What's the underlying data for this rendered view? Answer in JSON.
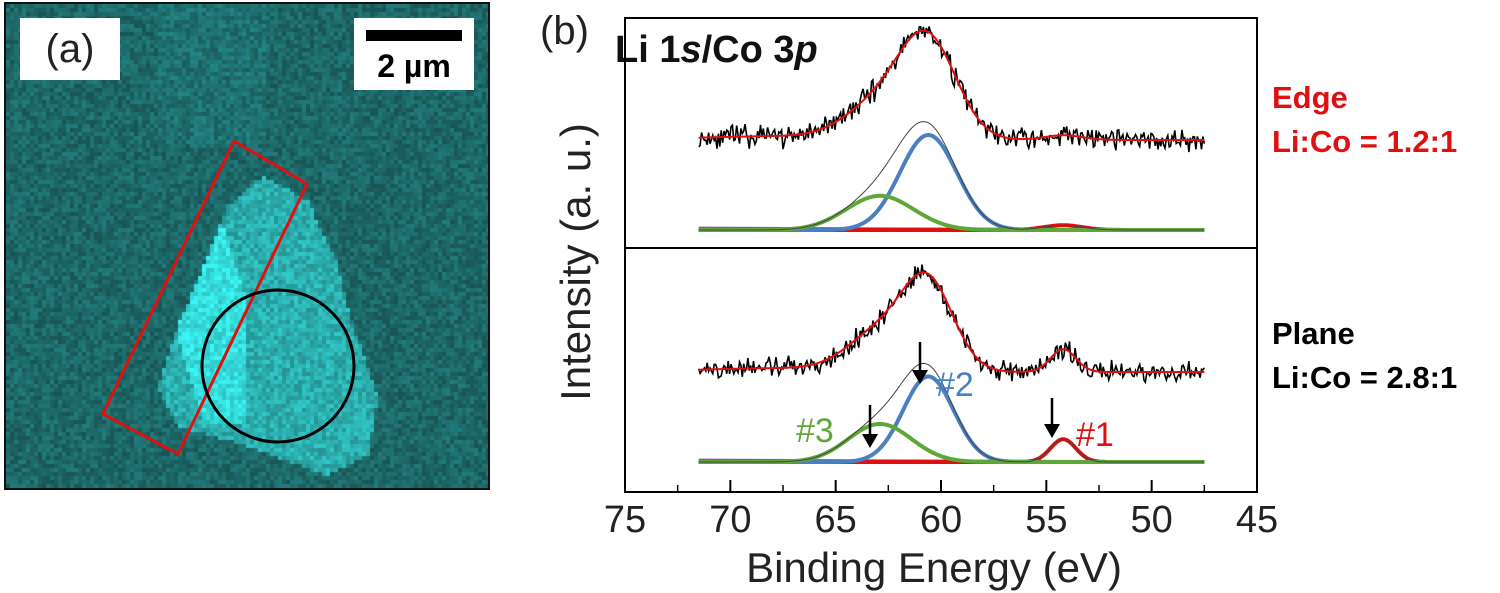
{
  "panel_a": {
    "label": "(a)",
    "scale_bar_label": "2 µm"
  },
  "panel_b": {
    "label": "(b)",
    "title_parts": [
      "Li 1",
      "s",
      "/Co 3",
      "p"
    ],
    "edge_name": "Edge",
    "edge_ratio": "Li:Co = 1.2:1",
    "plane_name": "Plane",
    "plane_ratio": "Li:Co = 2.8:1",
    "peak_labels": [
      "#1",
      "#2",
      "#3"
    ]
  },
  "colors": {
    "red": "#e01010",
    "blue": "#4a7fc1",
    "green": "#5ea83a",
    "purple": "#9050a8",
    "cyan": "#3fd8d8"
  },
  "chart_data": {
    "type": "line",
    "xlabel": "Binding Energy (eV)",
    "ylabel": "Intensity (a. u.)",
    "xlim": [
      75,
      45
    ],
    "x_reversed": true,
    "xticks": [
      75,
      70,
      65,
      60,
      55,
      50,
      45
    ],
    "x_range_data": [
      71.5,
      47.5
    ],
    "panels": [
      {
        "name": "Edge",
        "ratio": "Li:Co = 1.2:1",
        "components": [
          {
            "label": "#1",
            "color": "#e01010",
            "center": 54.2,
            "height": 0.025,
            "width": 0.9
          },
          {
            "label": "#2",
            "color": "#4a7fc1",
            "center": 60.6,
            "height": 0.5,
            "width": 1.35
          },
          {
            "label": "#3",
            "color": "#5ea83a",
            "center": 62.9,
            "height": 0.18,
            "width": 1.6
          }
        ],
        "background_level": 0.28,
        "peak_intensity": 1.0
      },
      {
        "name": "Plane",
        "ratio": "Li:Co = 2.8:1",
        "components": [
          {
            "label": "#1",
            "color": "#e01010",
            "center": 54.2,
            "height": 0.12,
            "width": 0.6
          },
          {
            "label": "#2",
            "color": "#4a7fc1",
            "center": 60.6,
            "height": 0.45,
            "width": 1.2
          },
          {
            "label": "#3",
            "color": "#5ea83a",
            "center": 62.9,
            "height": 0.2,
            "width": 1.5
          }
        ],
        "background_level": 0.3,
        "peak_intensity": 1.0
      }
    ]
  }
}
